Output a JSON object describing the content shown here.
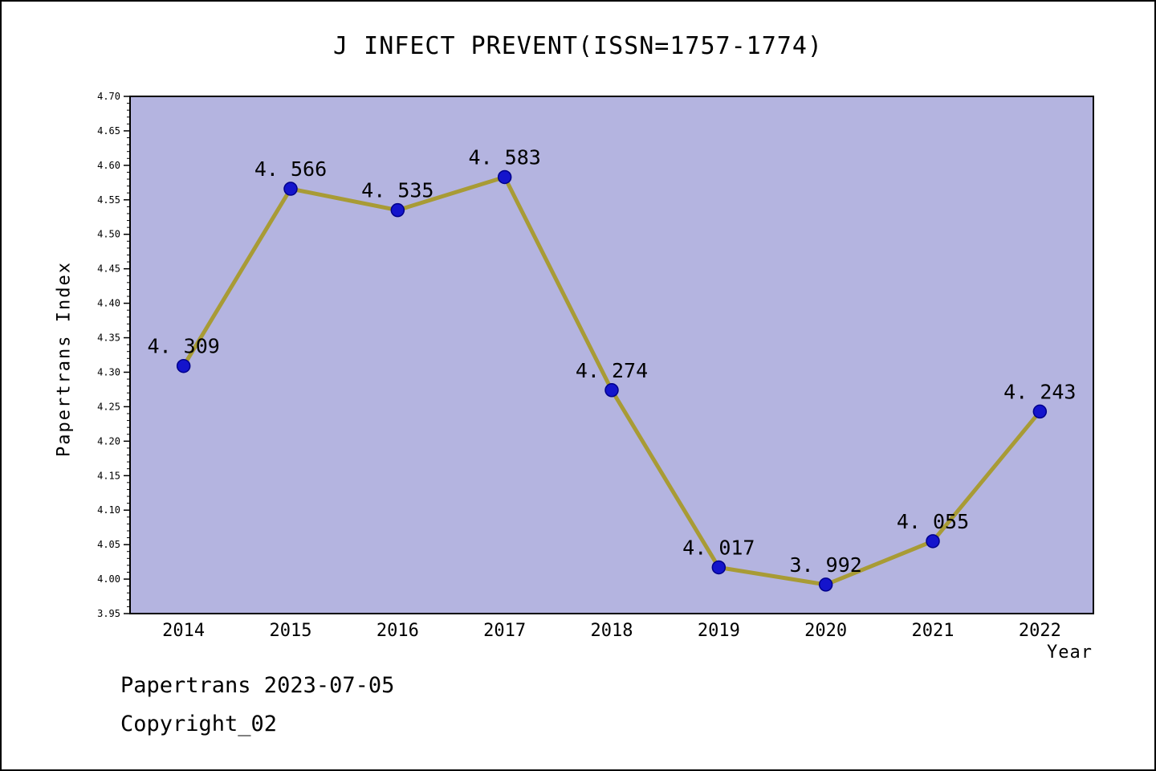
{
  "title": "J INFECT PREVENT(ISSN=1757-1774)",
  "footer": {
    "line1": "Papertrans 2023-07-05",
    "line2": "Copyright_02"
  },
  "chart_data": {
    "type": "line",
    "title": "J INFECT PREVENT(ISSN=1757-1774)",
    "xlabel": "Year",
    "ylabel": "Papertrans Index",
    "categories": [
      "2014",
      "2015",
      "2016",
      "2017",
      "2018",
      "2019",
      "2020",
      "2021",
      "2022"
    ],
    "values": [
      4.309,
      4.566,
      4.535,
      4.583,
      4.274,
      4.017,
      3.992,
      4.055,
      4.243
    ],
    "point_labels": [
      "4. 309",
      "4. 566",
      "4. 535",
      "4. 583",
      "4. 274",
      "4. 017",
      "3. 992",
      "4. 055",
      "4. 243"
    ],
    "ylim": [
      3.95,
      4.7
    ],
    "ytick_step": 0.05,
    "yminor_step": 0.01,
    "grid": "off",
    "legend": "none",
    "colors": {
      "line": "#a89b35",
      "marker_fill": "#1414cc",
      "marker_edge": "#00008b",
      "plot_bg": "#b4b4e0",
      "axis": "#000000",
      "text": "#000000"
    }
  }
}
